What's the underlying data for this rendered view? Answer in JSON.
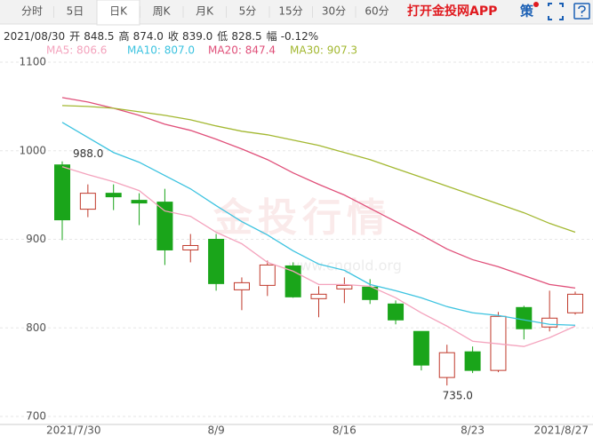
{
  "tabs": [
    "分时",
    "5日",
    "日K",
    "周K",
    "月K",
    "5分",
    "15分",
    "30分",
    "60分"
  ],
  "app_link": "打开金投网APP",
  "strategy_icon": "策",
  "quote": {
    "date": "2021/08/30",
    "items": [
      {
        "label": "开",
        "value": "848.5"
      },
      {
        "label": "高",
        "value": "874.0"
      },
      {
        "label": "收",
        "value": "839.0"
      },
      {
        "label": "低",
        "value": "828.5"
      },
      {
        "label": "幅",
        "value": "-0.12%"
      }
    ]
  },
  "watermark": {
    "title": "金投行情",
    "url": "www.cngold.org"
  },
  "chart_data": {
    "type": "candlestick",
    "categories": [
      "2021/7/30",
      null,
      null,
      null,
      null,
      null,
      "8/9",
      null,
      null,
      null,
      null,
      "8/16",
      null,
      null,
      null,
      null,
      "8/23",
      null,
      null,
      null,
      "2021/8/27"
    ],
    "open": [
      984,
      934,
      952,
      944,
      942,
      888,
      900,
      843,
      848,
      870,
      833,
      844,
      846,
      827,
      796,
      744,
      773,
      752,
      823,
      801,
      817
    ],
    "high": [
      988,
      962,
      962,
      952,
      957,
      906,
      906,
      857,
      876,
      874,
      847,
      857,
      855,
      831,
      796,
      781,
      779,
      818,
      825,
      842,
      841
    ],
    "low": [
      899,
      925,
      933,
      916,
      871,
      874,
      842,
      820,
      836,
      834,
      812,
      828,
      827,
      804,
      752,
      735,
      749,
      750,
      787,
      796,
      815
    ],
    "close": [
      922,
      952,
      948,
      941,
      888,
      893,
      850,
      851,
      871,
      835,
      838,
      848,
      832,
      809,
      758,
      772,
      752,
      813,
      799,
      811,
      838
    ],
    "high_label": "988.0",
    "low_label": "735.0",
    "up_color": "#c0392b",
    "down_color": "#1aa51a",
    "series": [
      {
        "name": "MA5: 806.6",
        "color": "#f4a3bd",
        "values": [
          982,
          973,
          965,
          955,
          932,
          926,
          908,
          895,
          874,
          864,
          849,
          849,
          847,
          834,
          817,
          802,
          785,
          782,
          779,
          789,
          802
        ]
      },
      {
        "name": "MA10: 807.0",
        "color": "#3cc3e0",
        "values": [
          1032,
          1015,
          998,
          987,
          972,
          957,
          938,
          920,
          905,
          887,
          872,
          865,
          849,
          842,
          834,
          824,
          817,
          814,
          809,
          804,
          803
        ]
      },
      {
        "name": "MA20: 847.4",
        "color": "#e0507a",
        "values": [
          1060,
          1055,
          1048,
          1040,
          1030,
          1023,
          1013,
          1002,
          990,
          975,
          962,
          950,
          935,
          920,
          905,
          889,
          877,
          869,
          859,
          849,
          845
        ]
      },
      {
        "name": "MA30: 907.3",
        "color": "#a3b831",
        "values": [
          1051,
          1050,
          1048,
          1044,
          1040,
          1035,
          1028,
          1022,
          1018,
          1012,
          1006,
          998,
          990,
          980,
          970,
          960,
          950,
          940,
          930,
          918,
          908
        ]
      }
    ],
    "ylim": [
      700,
      1100
    ],
    "yticks": [
      700,
      800,
      900,
      1000,
      1100
    ],
    "grid": true
  }
}
